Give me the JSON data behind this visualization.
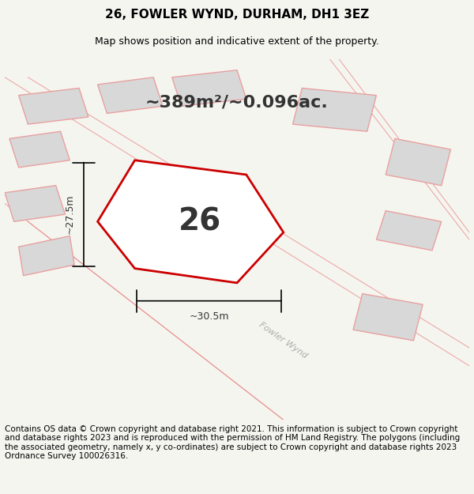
{
  "title_line1": "26, FOWLER WYND, DURHAM, DH1 3EZ",
  "title_line2": "Map shows position and indicative extent of the property.",
  "area_text": "~389m²/~0.096ac.",
  "property_number": "26",
  "dim_width": "~30.5m",
  "dim_height": "~27.5m",
  "road_label": "Fowler Wynd",
  "footer_text": "Contains OS data © Crown copyright and database right 2021. This information is subject to Crown copyright and database rights 2023 and is reproduced with the permission of HM Land Registry. The polygons (including the associated geometry, namely x, y co-ordinates) are subject to Crown copyright and database rights 2023 Ordnance Survey 100026316.",
  "bg_color": "#f5f5f0",
  "map_bg": "#f0eeea",
  "property_fill": "#ffffff",
  "property_edge": "#cc0000",
  "neighbor_fill": "#d8d8d8",
  "neighbor_edge": "#e8a0a0",
  "road_lines_color": "#e88888",
  "title_fontsize": 11,
  "subtitle_fontsize": 9,
  "area_fontsize": 16,
  "number_fontsize": 28,
  "footer_fontsize": 7.5
}
